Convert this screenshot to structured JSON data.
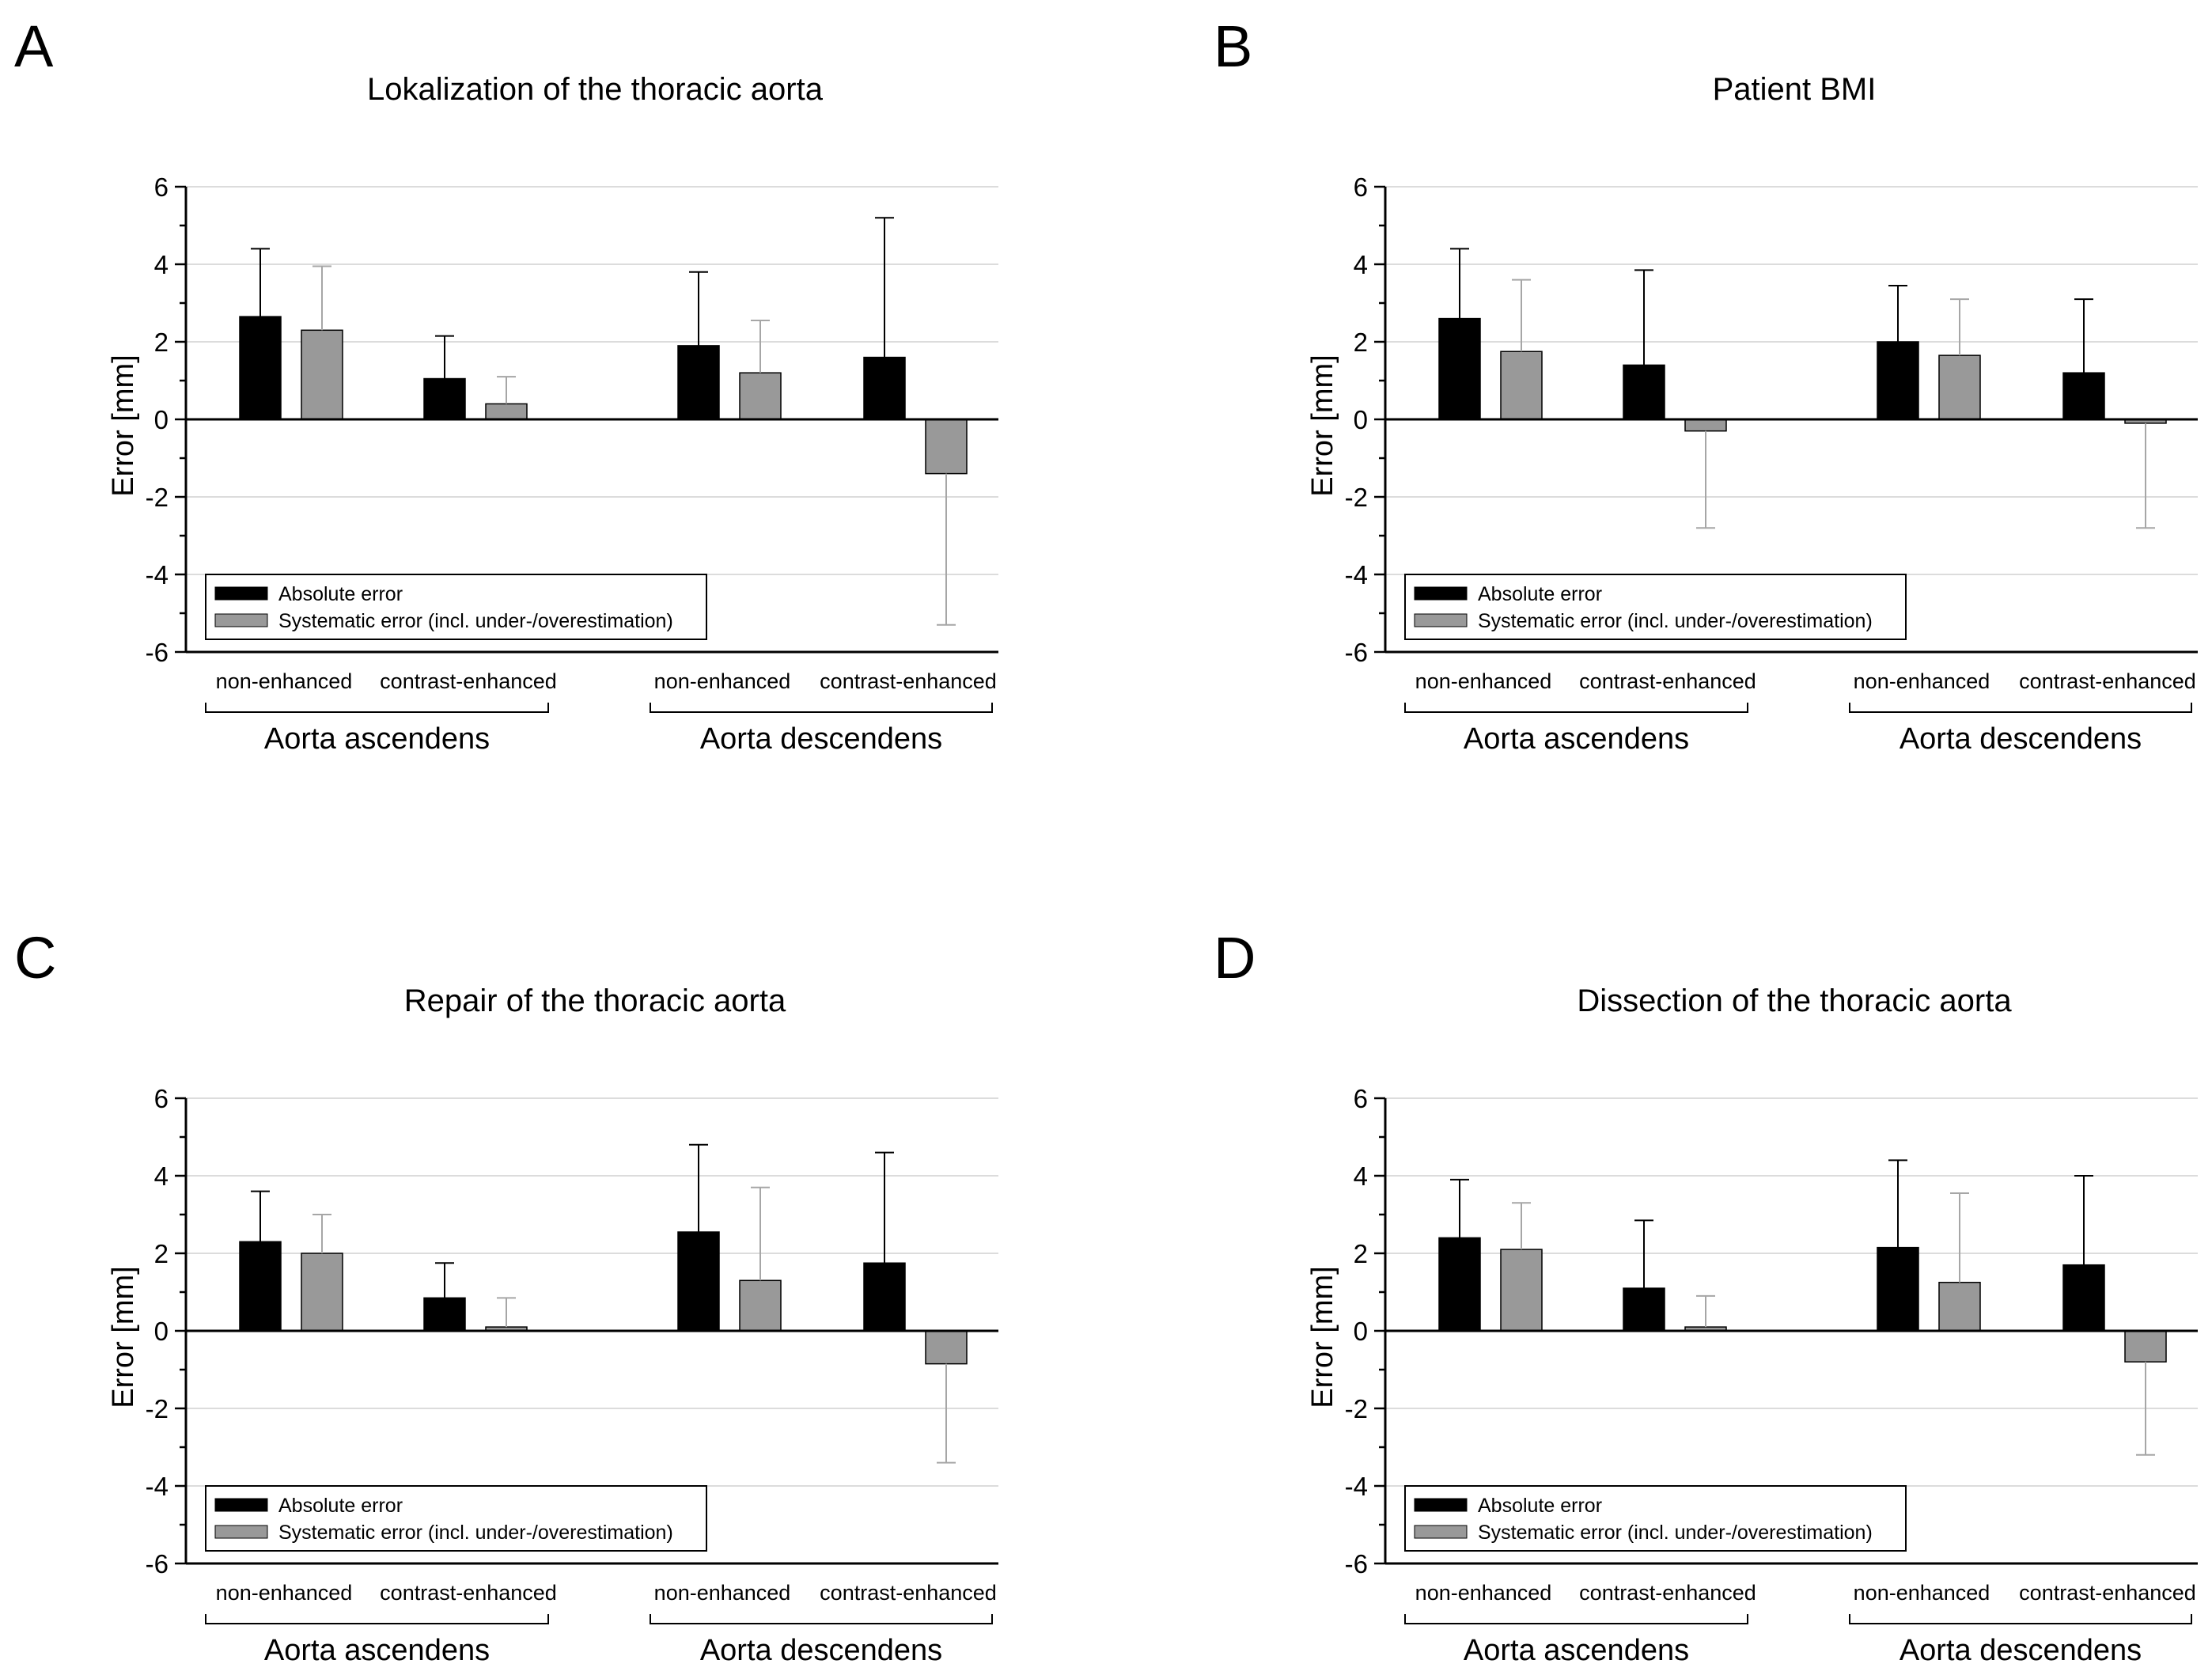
{
  "legend": {
    "absolute_label": "Absolute error",
    "systematic_label": "Systematic error (incl. under-/overestimation)"
  },
  "colors": {
    "absolute": "#000000",
    "systematic": "#999999",
    "axis": "#000000",
    "grid": "#dcdcdc",
    "error_bar_absolute": "#000000",
    "error_bar_systematic": "#a6a6a6"
  },
  "chart_data": [
    {
      "type": "bar",
      "panel_letter": "A",
      "title": "Lokalization of the thoracic aorta",
      "ylabel": "Error [mm]",
      "ylim": [
        -6,
        6
      ],
      "yticks": [
        "6",
        "4",
        "2",
        "0",
        "-2",
        "-4",
        "-6"
      ],
      "grid": true,
      "legend_position": "bottom-left",
      "groups": [
        "Aorta ascendens",
        "Aorta descendens"
      ],
      "categories": [
        "non-enhanced",
        "contrast-enhanced",
        "non-enhanced",
        "contrast-enhanced"
      ],
      "series": [
        {
          "name": "Absolute error",
          "values": [
            2.65,
            1.05,
            1.9,
            1.6
          ],
          "error_bars": [
            4.4,
            2.15,
            3.8,
            5.2
          ]
        },
        {
          "name": "Systematic error (incl. under-/overestimation)",
          "values": [
            2.3,
            0.4,
            1.2,
            -1.4
          ],
          "error_bars": [
            3.95,
            1.1,
            2.55,
            -5.3
          ]
        }
      ]
    },
    {
      "type": "bar",
      "panel_letter": "B",
      "title": "Patient BMI",
      "ylabel": "Error [mm]",
      "ylim": [
        -6,
        6
      ],
      "yticks": [
        "6",
        "4",
        "2",
        "0",
        "-2",
        "-4",
        "-6"
      ],
      "grid": true,
      "legend_position": "bottom-left",
      "groups": [
        "Aorta ascendens",
        "Aorta descendens"
      ],
      "categories": [
        "non-enhanced",
        "contrast-enhanced",
        "non-enhanced",
        "contrast-enhanced"
      ],
      "series": [
        {
          "name": "Absolute error",
          "values": [
            2.6,
            1.4,
            2.0,
            1.2
          ],
          "error_bars": [
            4.4,
            3.85,
            3.45,
            3.1
          ]
        },
        {
          "name": "Systematic error (incl. under-/overestimation)",
          "values": [
            1.75,
            -0.3,
            1.65,
            -0.1
          ],
          "error_bars": [
            3.6,
            -2.8,
            3.1,
            -2.8
          ]
        }
      ]
    },
    {
      "type": "bar",
      "panel_letter": "C",
      "title": "Repair of the thoracic aorta",
      "ylabel": "Error [mm]",
      "ylim": [
        -6,
        6
      ],
      "yticks": [
        "6",
        "4",
        "2",
        "0",
        "-2",
        "-4",
        "-6"
      ],
      "grid": true,
      "legend_position": "bottom-left",
      "groups": [
        "Aorta ascendens",
        "Aorta descendens"
      ],
      "categories": [
        "non-enhanced",
        "contrast-enhanced",
        "non-enhanced",
        "contrast-enhanced"
      ],
      "series": [
        {
          "name": "Absolute error",
          "values": [
            2.3,
            0.85,
            2.55,
            1.75
          ],
          "error_bars": [
            3.6,
            1.75,
            4.8,
            4.6
          ]
        },
        {
          "name": "Systematic error (incl. under-/overestimation)",
          "values": [
            2.0,
            0.1,
            1.3,
            -0.85
          ],
          "error_bars": [
            3.0,
            0.85,
            3.7,
            -3.4
          ]
        }
      ]
    },
    {
      "type": "bar",
      "panel_letter": "D",
      "title": "Dissection of the thoracic aorta",
      "ylabel": "Error [mm]",
      "ylim": [
        -6,
        6
      ],
      "yticks": [
        "6",
        "4",
        "2",
        "0",
        "-2",
        "-4",
        "-6"
      ],
      "grid": true,
      "legend_position": "bottom-left",
      "groups": [
        "Aorta ascendens",
        "Aorta descendens"
      ],
      "categories": [
        "non-enhanced",
        "contrast-enhanced",
        "non-enhanced",
        "contrast-enhanced"
      ],
      "series": [
        {
          "name": "Absolute error",
          "values": [
            2.4,
            1.1,
            2.15,
            1.7
          ],
          "error_bars": [
            3.9,
            2.85,
            4.4,
            4.0
          ]
        },
        {
          "name": "Systematic error (incl. under-/overestimation)",
          "values": [
            2.1,
            0.1,
            1.25,
            -0.8
          ],
          "error_bars": [
            3.3,
            0.9,
            3.55,
            -3.2
          ]
        }
      ]
    }
  ]
}
